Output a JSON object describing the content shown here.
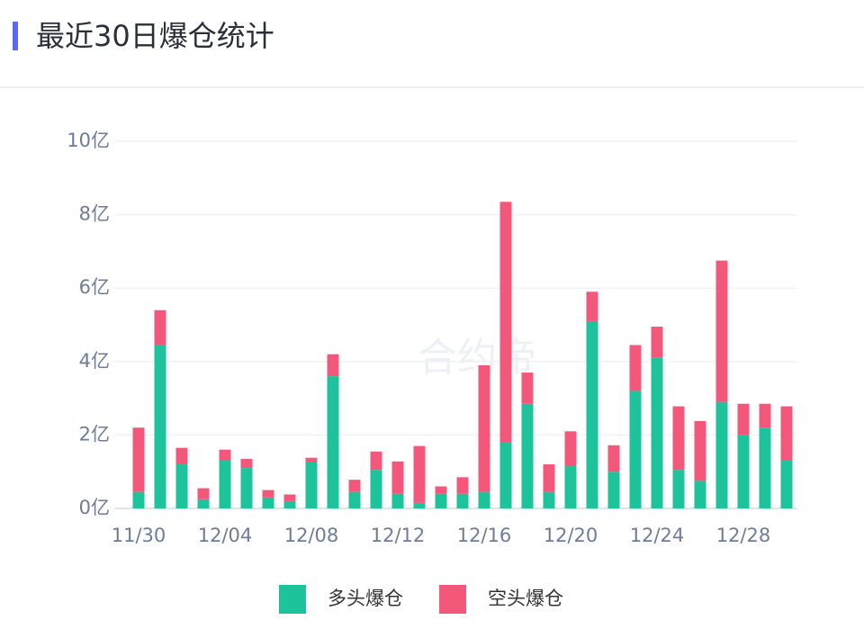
{
  "header": {
    "title": "最近30日爆仓统计"
  },
  "watermark": "合约帝",
  "chart_data": {
    "type": "stacked-bar",
    "categories": [
      "11/30",
      null,
      null,
      null,
      "12/04",
      null,
      null,
      null,
      "12/08",
      null,
      null,
      null,
      "12/12",
      null,
      null,
      null,
      "12/16",
      null,
      null,
      null,
      "12/20",
      null,
      null,
      null,
      "12/24",
      null,
      null,
      null,
      "12/28",
      null,
      null
    ],
    "series": [
      {
        "name": "多头爆仓",
        "color": "#1dc39b",
        "values": [
          0.45,
          4.45,
          1.2,
          0.25,
          1.3,
          1.1,
          0.3,
          0.2,
          1.25,
          3.6,
          0.45,
          1.05,
          0.4,
          0.15,
          0.4,
          0.4,
          0.45,
          1.8,
          2.85,
          0.45,
          1.15,
          5.1,
          1.0,
          3.2,
          4.1,
          1.05,
          0.75,
          2.9,
          2.0,
          2.2,
          1.3
        ]
      },
      {
        "name": "空头爆仓",
        "color": "#f3587a",
        "values": [
          1.75,
          0.95,
          0.45,
          0.3,
          0.3,
          0.25,
          0.2,
          0.18,
          0.13,
          0.6,
          0.33,
          0.5,
          0.88,
          1.55,
          0.2,
          0.45,
          3.45,
          6.55,
          0.85,
          0.75,
          0.95,
          0.8,
          0.72,
          1.25,
          0.85,
          1.73,
          1.63,
          3.85,
          0.85,
          0.65,
          1.48
        ]
      }
    ],
    "ylim": [
      0,
      10
    ],
    "yticks": [
      {
        "value": 0,
        "label": "0亿"
      },
      {
        "value": 2,
        "label": "2亿"
      },
      {
        "value": 4,
        "label": "4亿"
      },
      {
        "value": 6,
        "label": "6亿"
      },
      {
        "value": 8,
        "label": "8亿"
      },
      {
        "value": 10,
        "label": "10亿"
      }
    ],
    "grid": true,
    "legend": "bottom"
  }
}
